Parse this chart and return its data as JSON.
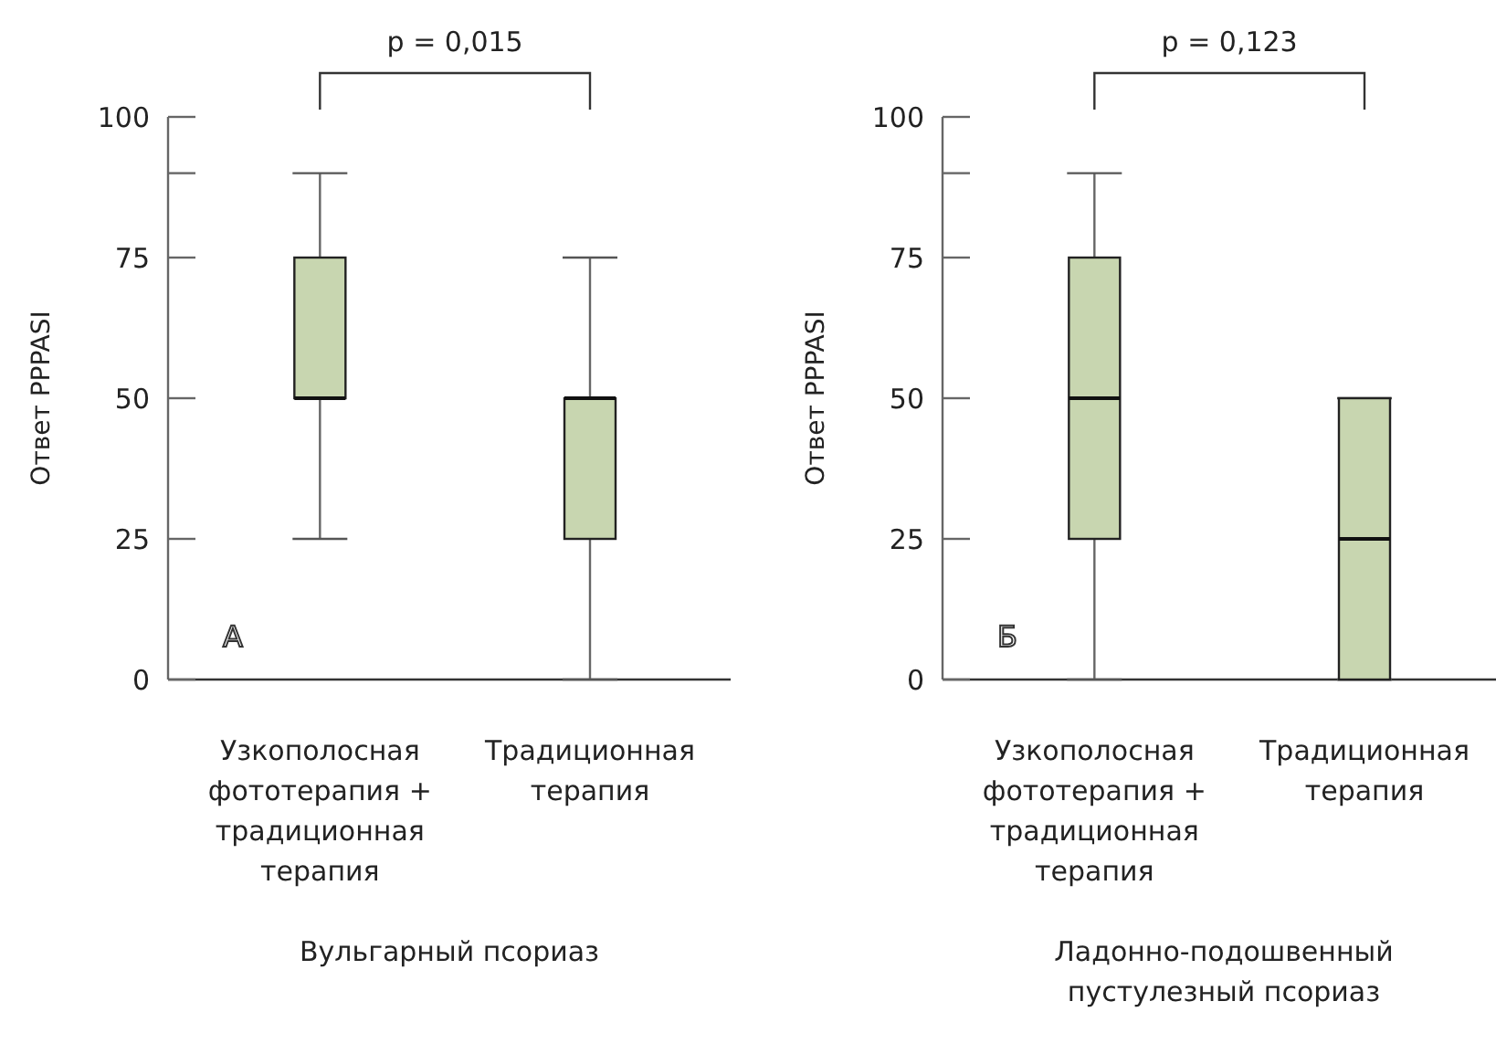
{
  "chart_data": [
    {
      "type": "box",
      "ylabel": "Ответ PPPASI",
      "xlabel": "Вульгарный псориаз",
      "categories": [
        "Узкополосная фототерапия + традиционная терапия",
        "Традиционная терапия"
      ],
      "color": "#c8d6b0",
      "boxes": [
        {
          "low": 25,
          "q1": 50,
          "median": 50,
          "q3": 75,
          "high": 90
        },
        {
          "low": 0,
          "q1": 25,
          "median": 50,
          "q3": 50,
          "high": 75
        }
      ],
      "ylim": [
        0,
        100
      ],
      "yticks": [
        0,
        25,
        50,
        75,
        {
          "value": 90,
          "label": null
        },
        100
      ],
      "annotations": [
        "p = 0,015",
        "А"
      ]
    },
    {
      "type": "box",
      "ylabel": "Ответ PPPASI",
      "xlabel": "Ладонно-подошвенный пустулезный псориаз",
      "categories": [
        "Узкополосная фототерапия + традиционная терапия",
        "Традиционная терапия"
      ],
      "color": "#c8d6b0",
      "boxes": [
        {
          "low": 0,
          "q1": 25,
          "median": 50,
          "q3": 75,
          "high": 90
        },
        {
          "low": 0,
          "q1": 0,
          "median": 25,
          "q3": 50,
          "high": 50
        }
      ],
      "ylim": [
        0,
        100
      ],
      "yticks": [
        0,
        25,
        50,
        75,
        {
          "value": 90,
          "label": null
        },
        100
      ],
      "annotations": [
        "p = 0,123",
        "Б"
      ]
    }
  ]
}
